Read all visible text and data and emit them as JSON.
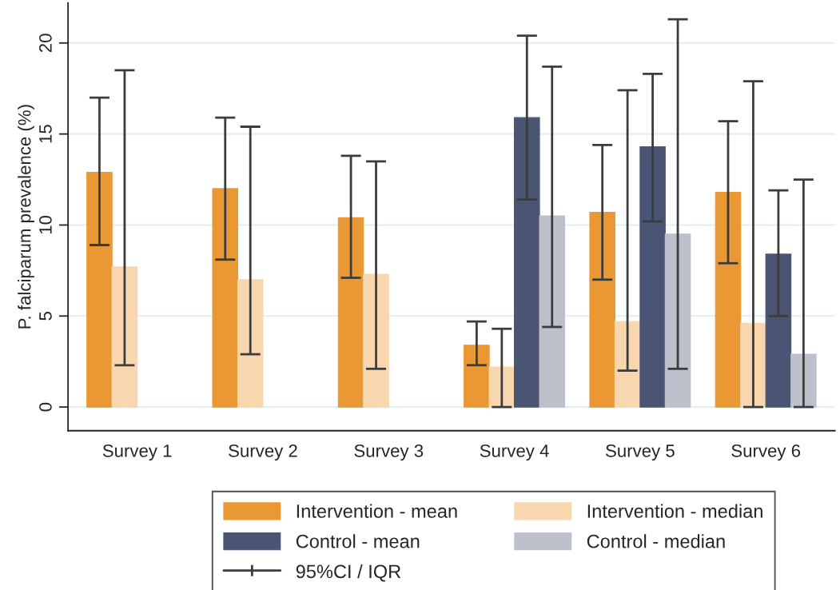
{
  "chart_data": {
    "type": "bar",
    "ylabel": "P. falciparum prevalence (%)",
    "categories": [
      "Survey 1",
      "Survey 2",
      "Survey 3",
      "Survey 4",
      "Survey 5",
      "Survey 6"
    ],
    "series": [
      {
        "name": "Intervention - mean",
        "color": "#e99834",
        "values": [
          12.9,
          12.0,
          10.4,
          3.4,
          10.7,
          11.8
        ],
        "errors": [
          [
            8.9,
            17.0
          ],
          [
            8.1,
            15.9
          ],
          [
            7.1,
            13.8
          ],
          [
            2.3,
            4.7
          ],
          [
            7.0,
            14.4
          ],
          [
            7.9,
            15.7
          ]
        ]
      },
      {
        "name": "Intervention - median",
        "color": "#f8d7ae",
        "values": [
          7.7,
          7.0,
          7.3,
          2.2,
          4.7,
          4.6
        ],
        "errors": [
          [
            2.3,
            18.5
          ],
          [
            2.9,
            15.4
          ],
          [
            2.1,
            13.5
          ],
          [
            0,
            4.3
          ],
          [
            2.0,
            17.4
          ],
          [
            0,
            17.9
          ]
        ]
      },
      {
        "name": "Control - mean",
        "color": "#4a5573",
        "values": [
          null,
          null,
          null,
          15.9,
          14.3,
          8.4
        ],
        "errors": [
          null,
          null,
          null,
          [
            11.4,
            20.4
          ],
          [
            10.2,
            18.3
          ],
          [
            5.0,
            11.9
          ]
        ]
      },
      {
        "name": "Control - median",
        "color": "#bbc0cb",
        "values": [
          null,
          null,
          null,
          10.5,
          9.5,
          2.9
        ],
        "errors": [
          null,
          null,
          null,
          [
            4.4,
            18.7
          ],
          [
            2.1,
            21.3
          ],
          [
            0,
            12.5
          ]
        ]
      }
    ],
    "annotations": [
      "95%CI / IQR"
    ],
    "ylim": [
      -1.3,
      22.2
    ],
    "yticks": [
      0,
      5,
      10,
      15,
      20
    ],
    "grid": "y",
    "legend": "bottom"
  }
}
